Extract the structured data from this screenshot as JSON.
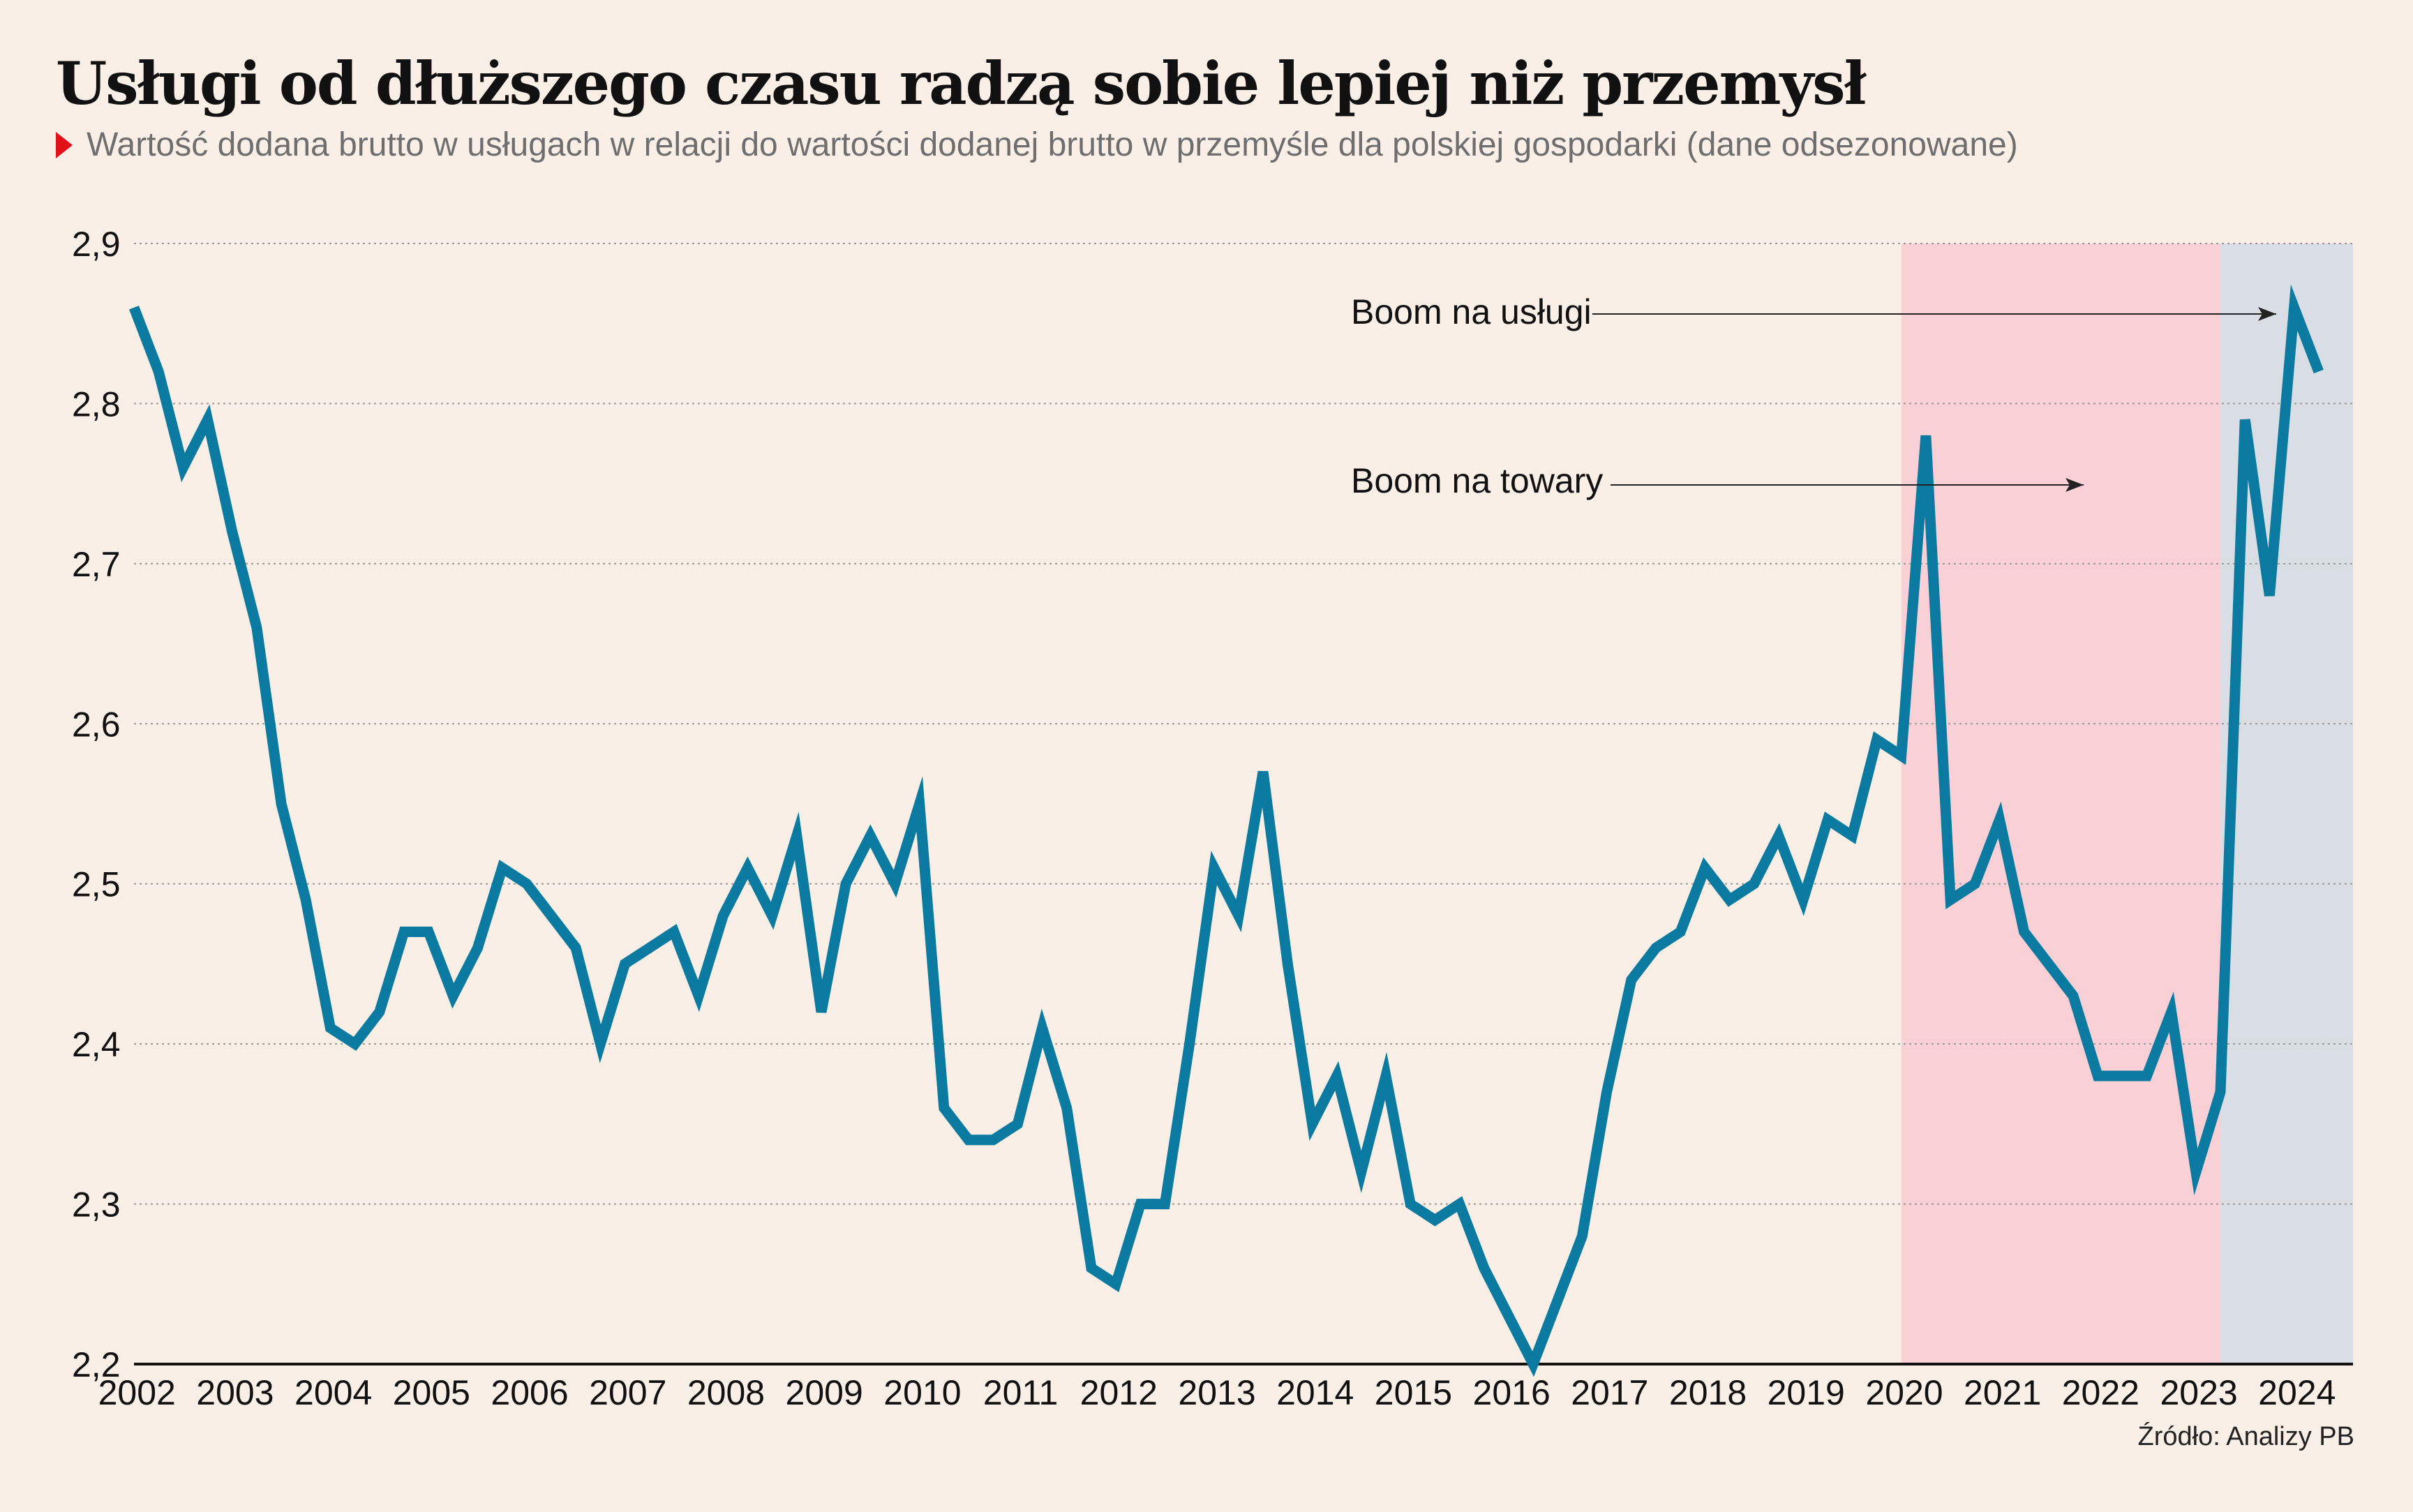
{
  "header": {
    "title": "Usługi od dłuższego czasu radzą sobie lepiej niż przemysł",
    "subtitle": "Wartość dodana brutto w usługach w relacji do wartości dodanej brutto w przemyśle dla polskiej gospodarki (dane odsezonowane)"
  },
  "source": "Źródło: Analizy PB",
  "colors": {
    "background": "#faefe6",
    "line": "#0b7aa0",
    "goods_boom_band": "#f8d0d6",
    "services_boom_band": "#d9dde4",
    "subtitle_marker": "#e3101a"
  },
  "chart_data": {
    "type": "line",
    "title": "Usługi od dłuższego czasu radzą sobie lepiej niż przemysł",
    "xlabel": "",
    "ylabel": "",
    "x": [
      "2002Q1",
      "2002Q2",
      "2002Q3",
      "2002Q4",
      "2003Q1",
      "2003Q2",
      "2003Q3",
      "2003Q4",
      "2004Q1",
      "2004Q2",
      "2004Q3",
      "2004Q4",
      "2005Q1",
      "2005Q2",
      "2005Q3",
      "2005Q4",
      "2006Q1",
      "2006Q2",
      "2006Q3",
      "2006Q4",
      "2007Q1",
      "2007Q2",
      "2007Q3",
      "2007Q4",
      "2008Q1",
      "2008Q2",
      "2008Q3",
      "2008Q4",
      "2009Q1",
      "2009Q2",
      "2009Q3",
      "2009Q4",
      "2010Q1",
      "2010Q2",
      "2010Q3",
      "2010Q4",
      "2011Q1",
      "2011Q2",
      "2011Q3",
      "2011Q4",
      "2012Q1",
      "2012Q2",
      "2012Q3",
      "2012Q4",
      "2013Q1",
      "2013Q2",
      "2013Q3",
      "2013Q4",
      "2014Q1",
      "2014Q2",
      "2014Q3",
      "2014Q4",
      "2015Q1",
      "2015Q2",
      "2015Q3",
      "2015Q4",
      "2016Q1",
      "2016Q2",
      "2016Q3",
      "2016Q4",
      "2017Q1",
      "2017Q2",
      "2017Q3",
      "2017Q4",
      "2018Q1",
      "2018Q2",
      "2018Q3",
      "2018Q4",
      "2019Q1",
      "2019Q2",
      "2019Q3",
      "2019Q4",
      "2020Q1",
      "2020Q2",
      "2020Q3",
      "2020Q4",
      "2021Q1",
      "2021Q2",
      "2021Q3",
      "2021Q4",
      "2022Q1",
      "2022Q2",
      "2022Q3",
      "2022Q4",
      "2023Q1",
      "2023Q2",
      "2023Q3",
      "2023Q4",
      "2024Q1",
      "2024Q2"
    ],
    "series": [
      {
        "values": [
          2.86,
          2.82,
          2.76,
          2.79,
          2.72,
          2.66,
          2.55,
          2.49,
          2.41,
          2.4,
          2.42,
          2.47,
          2.47,
          2.43,
          2.46,
          2.51,
          2.5,
          2.48,
          2.46,
          2.4,
          2.45,
          2.46,
          2.47,
          2.43,
          2.48,
          2.51,
          2.48,
          2.53,
          2.42,
          2.5,
          2.53,
          2.5,
          2.55,
          2.36,
          2.34,
          2.34,
          2.35,
          2.41,
          2.36,
          2.26,
          2.25,
          2.3,
          2.3,
          2.4,
          2.51,
          2.48,
          2.57,
          2.45,
          2.35,
          2.38,
          2.32,
          2.38,
          2.3,
          2.29,
          2.3,
          2.26,
          2.23,
          2.2,
          2.24,
          2.28,
          2.37,
          2.44,
          2.46,
          2.47,
          2.51,
          2.49,
          2.5,
          2.53,
          2.49,
          2.54,
          2.53,
          2.59,
          2.58,
          2.78,
          2.49,
          2.5,
          2.54,
          2.47,
          2.45,
          2.43,
          2.38,
          2.38,
          2.38,
          2.42,
          2.32,
          2.37,
          2.79,
          2.68,
          2.86,
          2.82
        ]
      }
    ],
    "ylim": [
      2.2,
      2.9
    ],
    "yticks": [
      "2,9",
      "2,8",
      "2,7",
      "2,6",
      "2,5",
      "2,4",
      "2,3",
      "2,2"
    ],
    "xtick_labels": [
      "2002",
      "2003",
      "2004",
      "2005",
      "2006",
      "2007",
      "2008",
      "2009",
      "2010",
      "2011",
      "2012",
      "2013",
      "2014",
      "2015",
      "2016",
      "2017",
      "2018",
      "2019",
      "2020",
      "2021",
      "2022",
      "2023",
      "2024"
    ],
    "grid": true,
    "shaded_regions": [
      {
        "from": "2020Q1",
        "to": "2023Q1",
        "meaning": "goods boom"
      },
      {
        "from": "2023Q2",
        "to": "2024Q2",
        "meaning": "services boom"
      }
    ],
    "annotations": [
      {
        "text": "Boom na usługi",
        "points_to": "2024Q1"
      },
      {
        "text": "Boom na towary",
        "points_to": "2021Q3"
      }
    ]
  }
}
